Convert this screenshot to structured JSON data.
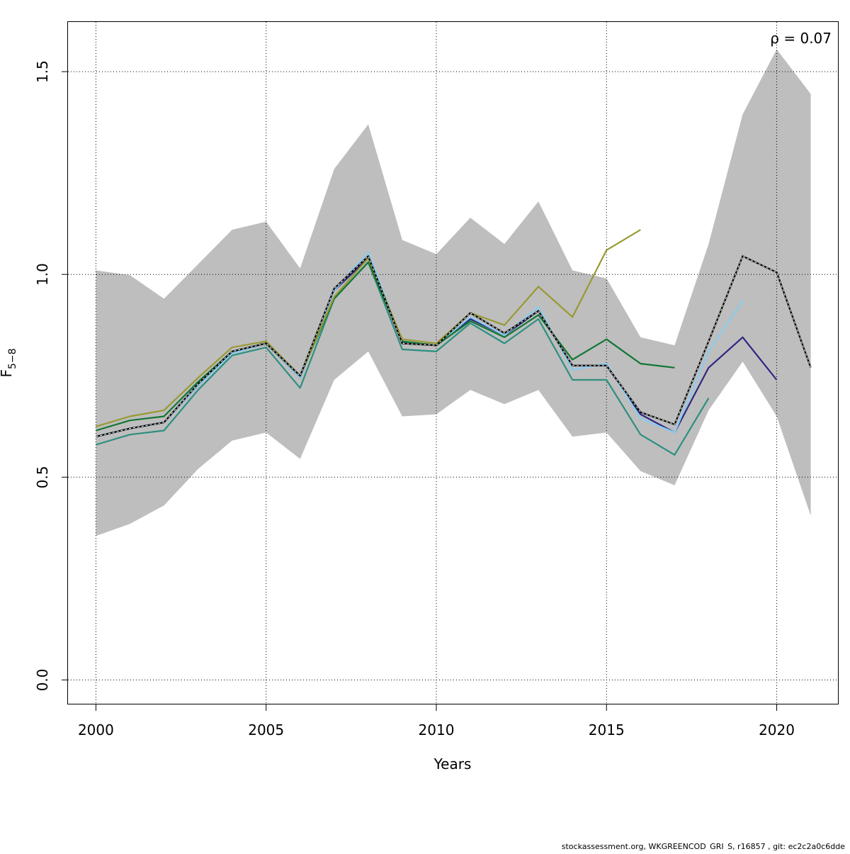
{
  "chart_data": {
    "type": "line",
    "xlabel": "Years",
    "ylabel": "F",
    "ylabel_subscript": "5−8",
    "annotation": "ρ = 0.07",
    "footer": "stockassessment.org, WKGREENCOD_GRI_S, r16857 , git: ec2c2a0c6dde",
    "xlim": [
      1999.18,
      2021.82
    ],
    "ylim": [
      -0.0605,
      1.6225
    ],
    "x_ticks": [
      2000,
      2005,
      2010,
      2015,
      2020
    ],
    "y_ticks": [
      0.0,
      0.5,
      1.0,
      1.5
    ],
    "x_tick_labels": [
      "2000",
      "2005",
      "2010",
      "2015",
      "2020"
    ],
    "y_tick_labels": [
      "0.0",
      "0.5",
      "1.0",
      "1.5"
    ],
    "grid": true,
    "confidence_band": {
      "color": "#bebebe",
      "x": [
        2000,
        2001,
        2002,
        2003,
        2004,
        2005,
        2006,
        2007,
        2008,
        2009,
        2010,
        2011,
        2012,
        2013,
        2014,
        2015,
        2016,
        2017,
        2018,
        2019,
        2020,
        2021
      ],
      "upper": [
        1.01,
        0.998,
        0.94,
        1.025,
        1.11,
        1.13,
        1.015,
        1.26,
        1.37,
        1.085,
        1.05,
        1.14,
        1.075,
        1.18,
        1.01,
        0.99,
        0.845,
        0.825,
        1.075,
        1.395,
        1.555,
        1.445
      ],
      "lower": [
        0.355,
        0.385,
        0.43,
        0.52,
        0.59,
        0.61,
        0.545,
        0.74,
        0.81,
        0.65,
        0.655,
        0.715,
        0.68,
        0.715,
        0.6,
        0.61,
        0.515,
        0.48,
        0.665,
        0.785,
        0.65,
        0.405
      ]
    },
    "series": [
      {
        "color": "#2d8f7f",
        "x": [
          2000,
          2001,
          2002,
          2003,
          2004,
          2005,
          2006,
          2007,
          2008,
          2009,
          2010,
          2011,
          2012,
          2013,
          2014,
          2015,
          2016,
          2017,
          2018
        ],
        "values": [
          0.58,
          0.605,
          0.615,
          0.715,
          0.8,
          0.82,
          0.72,
          0.94,
          1.03,
          0.815,
          0.81,
          0.88,
          0.83,
          0.89,
          0.74,
          0.74,
          0.605,
          0.555,
          0.695
        ]
      },
      {
        "color": "#2f2683",
        "x": [
          2000,
          2001,
          2002,
          2003,
          2004,
          2005,
          2006,
          2007,
          2008,
          2009,
          2010,
          2011,
          2012,
          2013,
          2014,
          2015,
          2016,
          2017,
          2018,
          2019,
          2020
        ],
        "values": [
          0.6,
          0.62,
          0.635,
          0.725,
          0.81,
          0.83,
          0.745,
          0.96,
          1.04,
          0.83,
          0.825,
          0.89,
          0.85,
          0.91,
          0.775,
          0.775,
          0.655,
          0.61,
          0.77,
          0.845,
          0.74
        ]
      },
      {
        "color": "#88ccee",
        "x": [
          2000,
          2001,
          2002,
          2003,
          2004,
          2005,
          2006,
          2007,
          2008,
          2009,
          2010,
          2011,
          2012,
          2013,
          2014,
          2015,
          2016,
          2017,
          2018,
          2019
        ],
        "values": [
          0.6,
          0.62,
          0.635,
          0.725,
          0.805,
          0.83,
          0.745,
          0.96,
          1.055,
          0.835,
          0.825,
          0.895,
          0.85,
          0.92,
          0.765,
          0.78,
          0.645,
          0.61,
          0.81,
          0.935
        ]
      },
      {
        "color": "#117733",
        "x": [
          2000,
          2001,
          2002,
          2003,
          2004,
          2005,
          2006,
          2007,
          2008,
          2009,
          2010,
          2011,
          2012,
          2013,
          2014,
          2015,
          2016,
          2017
        ],
        "values": [
          0.615,
          0.64,
          0.65,
          0.735,
          0.81,
          0.83,
          0.75,
          0.94,
          1.03,
          0.835,
          0.825,
          0.885,
          0.845,
          0.9,
          0.79,
          0.84,
          0.78,
          0.77
        ]
      },
      {
        "color": "#999933",
        "x": [
          2000,
          2001,
          2002,
          2003,
          2004,
          2005,
          2006,
          2007,
          2008,
          2009,
          2010,
          2011,
          2012,
          2013,
          2014,
          2015,
          2016
        ],
        "values": [
          0.625,
          0.65,
          0.665,
          0.745,
          0.82,
          0.835,
          0.75,
          0.945,
          1.04,
          0.84,
          0.83,
          0.905,
          0.875,
          0.97,
          0.895,
          1.06,
          1.11
        ]
      },
      {
        "color": "#000000",
        "dashed_overlay": true,
        "x": [
          2000,
          2001,
          2002,
          2003,
          2004,
          2005,
          2006,
          2007,
          2008,
          2009,
          2010,
          2011,
          2012,
          2013,
          2014,
          2015,
          2016,
          2017,
          2018,
          2019,
          2020,
          2021
        ],
        "values": [
          0.6,
          0.62,
          0.635,
          0.73,
          0.81,
          0.83,
          0.75,
          0.965,
          1.045,
          0.83,
          0.825,
          0.905,
          0.855,
          0.91,
          0.775,
          0.775,
          0.66,
          0.63,
          0.835,
          1.045,
          1.005,
          0.77
        ]
      }
    ]
  }
}
